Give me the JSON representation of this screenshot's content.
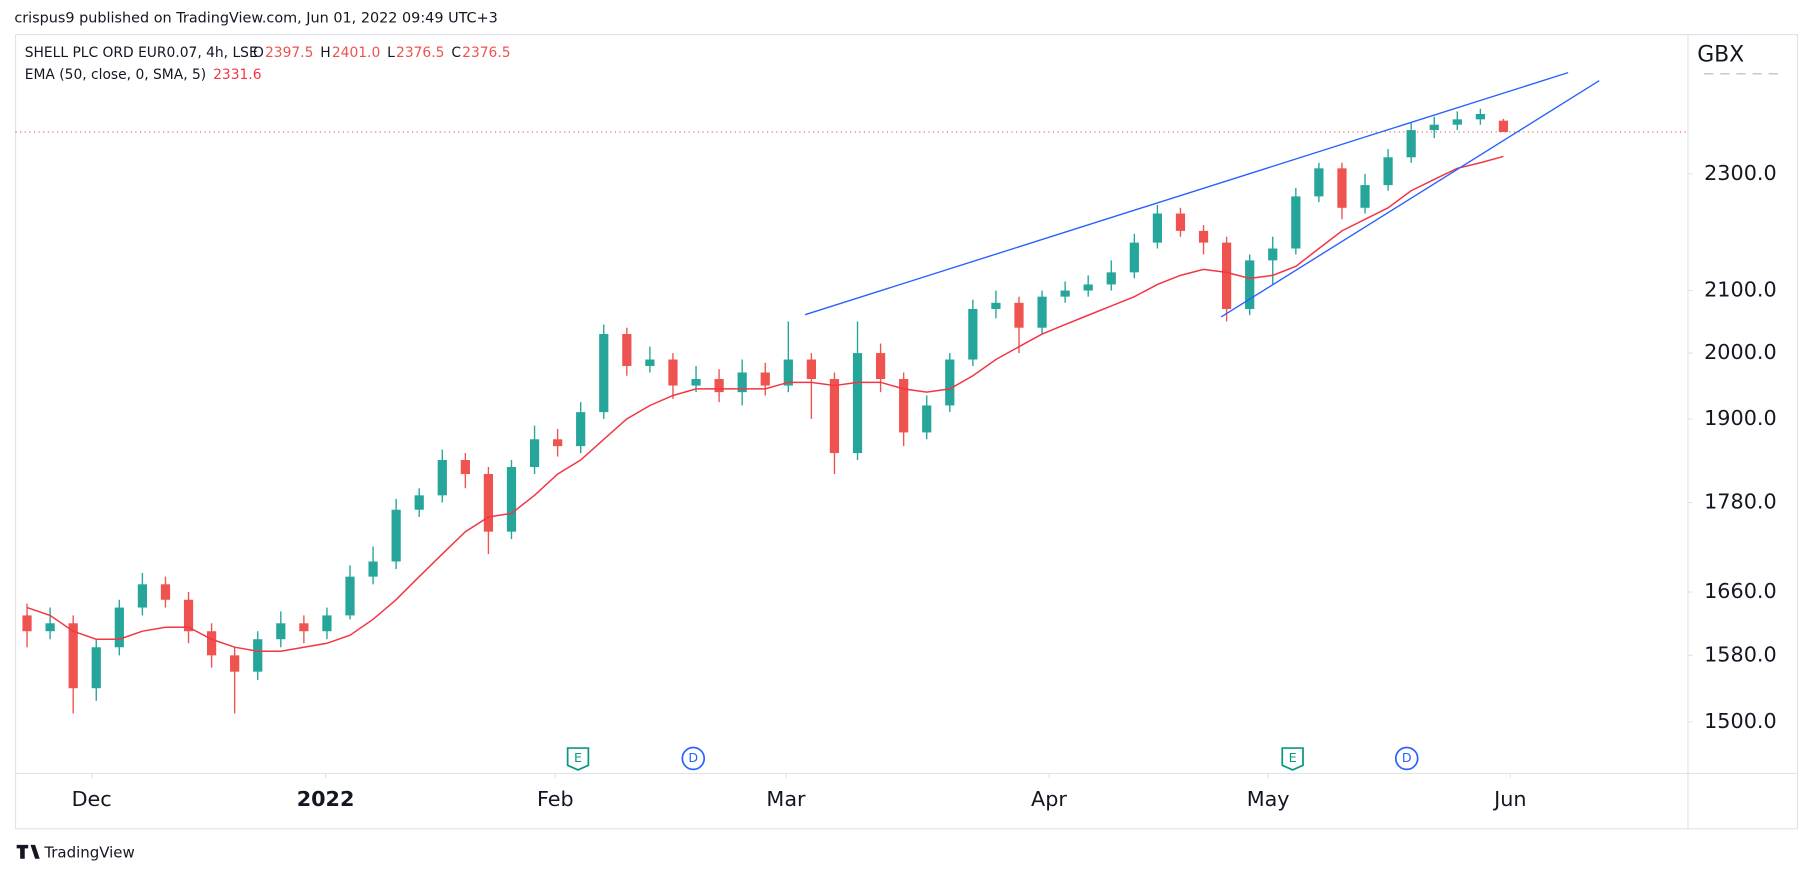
{
  "chart_data": {
    "type": "candlestick",
    "published": "crispus9 published on TradingView.com, Jun 01, 2022 09:49 UTC+3",
    "title": "SHELL PLC ORD EUR0.07, 4h, LSE",
    "ohlc_legend": [
      [
        "O",
        "2397.5"
      ],
      [
        "H",
        "2401.0"
      ],
      [
        "L",
        "2376.5"
      ],
      [
        "C",
        "2376.5"
      ]
    ],
    "unit": "GBX",
    "brand": "TradingView",
    "events": [
      "E",
      "D",
      "E",
      "D"
    ],
    "up_color": "#26a69a",
    "down_color": "#ef5350",
    "log_scale": true,
    "ylim": [
      1441,
      2564
    ],
    "yticks": [
      {
        "value": 1500,
        "label": "1500.0"
      },
      {
        "value": 1580,
        "label": "1580.0"
      },
      {
        "value": 1660,
        "label": "1660.0"
      },
      {
        "value": 1780,
        "label": "1780.0"
      },
      {
        "value": 1900,
        "label": "1900.0"
      },
      {
        "value": 2000,
        "label": "2000.0"
      },
      {
        "value": 2100,
        "label": "2100.0"
      },
      {
        "value": 2300,
        "label": "2300.0"
      }
    ],
    "xlim": [
      -0.5,
      72
    ],
    "xticks": [
      {
        "value": 2.8,
        "label": "Dec"
      },
      {
        "value": 12.94,
        "label": "2022"
      },
      {
        "value": 22.9,
        "label": "Feb"
      },
      {
        "value": 32.9,
        "label": "Mar"
      },
      {
        "value": 44.3,
        "label": "Apr"
      },
      {
        "value": 53.8,
        "label": "May"
      },
      {
        "value": 64.3,
        "label": "Jun"
      }
    ],
    "open": [
      1630,
      1610,
      1620,
      1540,
      1590,
      1640,
      1670,
      1650,
      1610,
      1580,
      1560,
      1600,
      1620,
      1610,
      1630,
      1680,
      1700,
      1770,
      1790,
      1840,
      1820,
      1740,
      1830,
      1870,
      1860,
      1910,
      2030,
      1980,
      1990,
      1950,
      1960,
      1940,
      1970,
      1950,
      1990,
      1960,
      1850,
      2000,
      1960,
      1880,
      1920,
      1990,
      2070,
      2080,
      2040,
      2090,
      2100,
      2110,
      2130,
      2180,
      2230,
      2200,
      2180,
      2070,
      2150,
      2170,
      2260,
      2310,
      2240,
      2280,
      2330,
      2380,
      2390,
      2400,
      2397.5
    ],
    "high": [
      1645,
      1640,
      1630,
      1600,
      1650,
      1685,
      1680,
      1660,
      1620,
      1590,
      1610,
      1635,
      1630,
      1640,
      1695,
      1720,
      1785,
      1800,
      1855,
      1850,
      1830,
      1840,
      1890,
      1885,
      1925,
      2045,
      2040,
      2010,
      2000,
      1980,
      1975,
      1990,
      1985,
      2050,
      2000,
      1970,
      2050,
      2015,
      1970,
      1935,
      2000,
      2085,
      2100,
      2090,
      2100,
      2115,
      2125,
      2150,
      2195,
      2245,
      2240,
      2210,
      2190,
      2160,
      2190,
      2275,
      2320,
      2320,
      2300,
      2345,
      2395,
      2405,
      2415,
      2420,
      2401
    ],
    "low": [
      1590,
      1600,
      1510,
      1525,
      1580,
      1630,
      1640,
      1595,
      1565,
      1510,
      1550,
      1590,
      1595,
      1600,
      1625,
      1670,
      1690,
      1760,
      1780,
      1800,
      1710,
      1730,
      1820,
      1845,
      1850,
      1900,
      1965,
      1970,
      1930,
      1940,
      1925,
      1920,
      1935,
      1940,
      1900,
      1820,
      1840,
      1940,
      1860,
      1870,
      1910,
      1980,
      2055,
      2000,
      2030,
      2080,
      2090,
      2100,
      2120,
      2170,
      2190,
      2160,
      2050,
      2060,
      2110,
      2160,
      2250,
      2220,
      2230,
      2270,
      2320,
      2365,
      2380,
      2390,
      2376.5
    ],
    "close": [
      1610,
      1620,
      1540,
      1590,
      1640,
      1670,
      1650,
      1610,
      1580,
      1560,
      1600,
      1620,
      1610,
      1630,
      1680,
      1700,
      1770,
      1790,
      1840,
      1820,
      1740,
      1830,
      1870,
      1860,
      1910,
      2030,
      1980,
      1990,
      1950,
      1960,
      1940,
      1970,
      1950,
      1990,
      1960,
      1850,
      2000,
      1960,
      1880,
      1920,
      1990,
      2070,
      2080,
      2040,
      2090,
      2100,
      2110,
      2130,
      2180,
      2230,
      2200,
      2180,
      2070,
      2150,
      2170,
      2260,
      2310,
      2240,
      2280,
      2330,
      2380,
      2390,
      2400,
      2410,
      2376.5
    ],
    "indicator": {
      "name": "EMA (50, close, 0, SMA, 5)",
      "value_label": "2331.6",
      "color": "#f23645",
      "values": [
        1640,
        1630,
        1610,
        1600,
        1600,
        1610,
        1615,
        1615,
        1600,
        1590,
        1585,
        1585,
        1590,
        1595,
        1605,
        1625,
        1650,
        1680,
        1710,
        1740,
        1760,
        1765,
        1790,
        1820,
        1840,
        1870,
        1900,
        1920,
        1935,
        1945,
        1945,
        1945,
        1945,
        1955,
        1955,
        1950,
        1955,
        1955,
        1945,
        1940,
        1945,
        1965,
        1990,
        2010,
        2030,
        2045,
        2060,
        2075,
        2090,
        2110,
        2125,
        2135,
        2130,
        2120,
        2125,
        2140,
        2170,
        2200,
        2220,
        2240,
        2270,
        2290,
        2310,
        2320,
        2331.6
      ]
    }
  }
}
